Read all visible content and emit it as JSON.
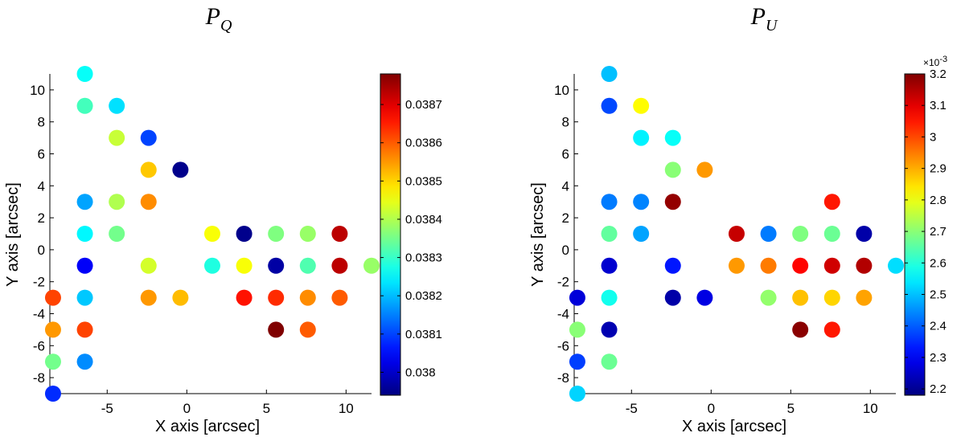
{
  "chart_data": [
    {
      "type": "scatter",
      "title": {
        "base": "P",
        "sub": "Q"
      },
      "xlabel": "X axis [arcsec]",
      "ylabel": "Y axis [arcsec]",
      "xlim": [
        -8.6,
        11.6
      ],
      "ylim": [
        -9,
        11
      ],
      "xticks": [
        -5,
        0,
        5,
        10
      ],
      "xtick_labels": [
        "-5",
        "0",
        "5",
        "10"
      ],
      "yticks": [
        -8,
        -6,
        -4,
        -2,
        0,
        2,
        4,
        6,
        8,
        10
      ],
      "ytick_labels": [
        "-8",
        "-6",
        "-4",
        "-2",
        "0",
        "2",
        "4",
        "6",
        "8",
        "10"
      ],
      "colorbar": {
        "range": [
          0.03794,
          0.03878
        ],
        "ticks": [
          0.038,
          0.0381,
          0.0382,
          0.0383,
          0.0384,
          0.0385,
          0.0386,
          0.0387
        ],
        "tick_labels": [
          "0.038",
          "0.0381",
          "0.0382",
          "0.0383",
          "0.0384",
          "0.0385",
          "0.0386",
          "0.0387"
        ],
        "exponent_label": ""
      },
      "points": [
        {
          "x": -6.4,
          "y": 11,
          "v": 0.03826
        },
        {
          "x": -6.4,
          "y": 9,
          "v": 0.03831
        },
        {
          "x": -4.4,
          "y": 9,
          "v": 0.03823
        },
        {
          "x": -4.4,
          "y": 7,
          "v": 0.03842
        },
        {
          "x": -2.4,
          "y": 7,
          "v": 0.0381
        },
        {
          "x": -2.4,
          "y": 5,
          "v": 0.03851
        },
        {
          "x": -0.4,
          "y": 5,
          "v": 0.03795
        },
        {
          "x": -6.4,
          "y": 3,
          "v": 0.03818
        },
        {
          "x": -4.4,
          "y": 3,
          "v": 0.0384
        },
        {
          "x": -2.4,
          "y": 3,
          "v": 0.03856
        },
        {
          "x": -6.4,
          "y": 1,
          "v": 0.03825
        },
        {
          "x": -4.4,
          "y": 1,
          "v": 0.03835
        },
        {
          "x": 1.6,
          "y": 1,
          "v": 0.03846
        },
        {
          "x": 3.6,
          "y": 1,
          "v": 0.03795
        },
        {
          "x": 5.6,
          "y": 1,
          "v": 0.03836
        },
        {
          "x": 7.6,
          "y": 1,
          "v": 0.03838
        },
        {
          "x": 9.6,
          "y": 1,
          "v": 0.03873
        },
        {
          "x": -6.4,
          "y": -1,
          "v": 0.03804
        },
        {
          "x": -2.4,
          "y": -1,
          "v": 0.03843
        },
        {
          "x": 1.6,
          "y": -1,
          "v": 0.03828
        },
        {
          "x": 3.6,
          "y": -1,
          "v": 0.03846
        },
        {
          "x": 5.6,
          "y": -1,
          "v": 0.03797
        },
        {
          "x": 7.6,
          "y": -1,
          "v": 0.03832
        },
        {
          "x": 9.6,
          "y": -1,
          "v": 0.03873
        },
        {
          "x": 11.6,
          "y": -1,
          "v": 0.03838
        },
        {
          "x": -8.4,
          "y": -3,
          "v": 0.03862
        },
        {
          "x": -6.4,
          "y": -3,
          "v": 0.03821
        },
        {
          "x": -2.4,
          "y": -3,
          "v": 0.03855
        },
        {
          "x": -0.4,
          "y": -3,
          "v": 0.03852
        },
        {
          "x": 3.6,
          "y": -3,
          "v": 0.03866
        },
        {
          "x": 5.6,
          "y": -3,
          "v": 0.03864
        },
        {
          "x": 7.6,
          "y": -3,
          "v": 0.03856
        },
        {
          "x": 9.6,
          "y": -3,
          "v": 0.0386
        },
        {
          "x": -8.4,
          "y": -5,
          "v": 0.03855
        },
        {
          "x": -6.4,
          "y": -5,
          "v": 0.03862
        },
        {
          "x": 5.6,
          "y": -5,
          "v": 0.03878
        },
        {
          "x": 7.6,
          "y": -5,
          "v": 0.0386
        },
        {
          "x": -8.4,
          "y": -7,
          "v": 0.03835
        },
        {
          "x": -6.4,
          "y": -7,
          "v": 0.03816
        },
        {
          "x": -8.4,
          "y": -9,
          "v": 0.03808
        }
      ]
    },
    {
      "type": "scatter",
      "title": {
        "base": "P",
        "sub": "U"
      },
      "xlabel": "X axis [arcsec]",
      "ylabel": "Y axis [arcsec]",
      "xlim": [
        -8.6,
        11.6
      ],
      "ylim": [
        -9,
        11
      ],
      "xticks": [
        -5,
        0,
        5,
        10
      ],
      "xtick_labels": [
        "-5",
        "0",
        "5",
        "10"
      ],
      "yticks": [
        -8,
        -6,
        -4,
        -2,
        0,
        2,
        4,
        6,
        8,
        10
      ],
      "ytick_labels": [
        "-8",
        "-6",
        "-4",
        "-2",
        "0",
        "2",
        "4",
        "6",
        "8",
        "10"
      ],
      "colorbar": {
        "range": [
          2.18,
          3.2
        ],
        "ticks": [
          2.2,
          2.3,
          2.4,
          2.5,
          2.6,
          2.7,
          2.8,
          2.9,
          3.0,
          3.1,
          3.2
        ],
        "tick_labels": [
          "2.2",
          "2.3",
          "2.4",
          "2.5",
          "2.6",
          "2.7",
          "2.8",
          "2.9",
          "3",
          "3.1",
          "3.2"
        ],
        "exponent_label": "×10",
        "exponent_power": "-3"
      },
      "points": [
        {
          "x": -6.4,
          "y": 11,
          "v": 2.5
        },
        {
          "x": -6.4,
          "y": 9,
          "v": 2.38
        },
        {
          "x": -4.4,
          "y": 9,
          "v": 2.82
        },
        {
          "x": -4.4,
          "y": 7,
          "v": 2.55
        },
        {
          "x": -2.4,
          "y": 7,
          "v": 2.57
        },
        {
          "x": -2.4,
          "y": 5,
          "v": 2.7
        },
        {
          "x": -0.4,
          "y": 5,
          "v": 2.92
        },
        {
          "x": -6.4,
          "y": 3,
          "v": 2.43
        },
        {
          "x": -4.4,
          "y": 3,
          "v": 2.44
        },
        {
          "x": -2.4,
          "y": 3,
          "v": 3.18
        },
        {
          "x": 7.6,
          "y": 3,
          "v": 3.05
        },
        {
          "x": -6.4,
          "y": 1,
          "v": 2.66
        },
        {
          "x": -4.4,
          "y": 1,
          "v": 2.47
        },
        {
          "x": 1.6,
          "y": 1,
          "v": 3.13
        },
        {
          "x": 3.6,
          "y": 1,
          "v": 2.43
        },
        {
          "x": 5.6,
          "y": 1,
          "v": 2.69
        },
        {
          "x": 7.6,
          "y": 1,
          "v": 2.67
        },
        {
          "x": 9.6,
          "y": 1,
          "v": 2.22
        },
        {
          "x": -6.4,
          "y": -1,
          "v": 2.26
        },
        {
          "x": -2.4,
          "y": -1,
          "v": 2.33
        },
        {
          "x": 1.6,
          "y": -1,
          "v": 2.92
        },
        {
          "x": 3.6,
          "y": -1,
          "v": 2.95
        },
        {
          "x": 5.6,
          "y": -1,
          "v": 3.07
        },
        {
          "x": 7.6,
          "y": -1,
          "v": 3.12
        },
        {
          "x": 9.6,
          "y": -1,
          "v": 3.15
        },
        {
          "x": 11.6,
          "y": -1,
          "v": 2.53
        },
        {
          "x": -8.4,
          "y": -3,
          "v": 2.27
        },
        {
          "x": -6.4,
          "y": -3,
          "v": 2.58
        },
        {
          "x": -2.4,
          "y": -3,
          "v": 2.22
        },
        {
          "x": -0.4,
          "y": -3,
          "v": 2.28
        },
        {
          "x": 3.6,
          "y": -3,
          "v": 2.71
        },
        {
          "x": 5.6,
          "y": -3,
          "v": 2.88
        },
        {
          "x": 7.6,
          "y": -3,
          "v": 2.86
        },
        {
          "x": 9.6,
          "y": -3,
          "v": 2.91
        },
        {
          "x": -8.4,
          "y": -5,
          "v": 2.7
        },
        {
          "x": -6.4,
          "y": -5,
          "v": 2.23
        },
        {
          "x": 5.6,
          "y": -5,
          "v": 3.19
        },
        {
          "x": 7.6,
          "y": -5,
          "v": 3.05
        },
        {
          "x": -8.4,
          "y": -7,
          "v": 2.37
        },
        {
          "x": -6.4,
          "y": -7,
          "v": 2.67
        },
        {
          "x": -8.4,
          "y": -9,
          "v": 2.52
        }
      ]
    }
  ]
}
